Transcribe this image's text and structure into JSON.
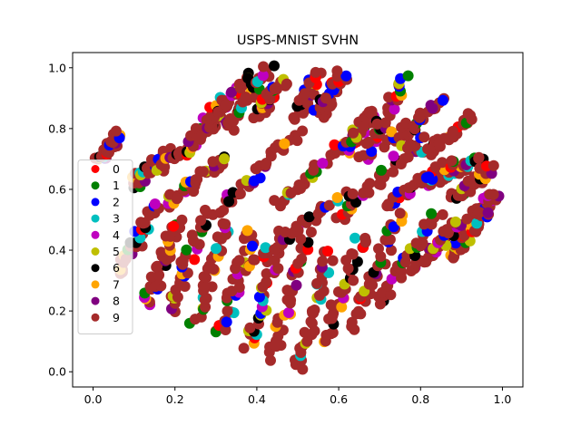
{
  "chart_data": {
    "type": "scatter",
    "title": "USPS-MNIST SVHN",
    "xlabel": "",
    "ylabel": "",
    "xlim": [
      -0.05,
      1.05
    ],
    "ylim": [
      -0.05,
      1.05
    ],
    "x_ticks": [
      "0.0",
      "0.2",
      "0.4",
      "0.6",
      "0.8",
      "1.0"
    ],
    "y_ticks": [
      "0.0",
      "0.2",
      "0.4",
      "0.6",
      "0.8",
      "1.0"
    ],
    "grid": false,
    "legend_position": "center-left",
    "series": [
      {
        "name": "0",
        "color": "#ff0000"
      },
      {
        "name": "1",
        "color": "#008000"
      },
      {
        "name": "2",
        "color": "#0000ff"
      },
      {
        "name": "3",
        "color": "#00bfbf"
      },
      {
        "name": "4",
        "color": "#bf00bf"
      },
      {
        "name": "5",
        "color": "#bfbf00"
      },
      {
        "name": "6",
        "color": "#000000"
      },
      {
        "name": "7",
        "color": "#ffa500"
      },
      {
        "name": "8",
        "color": "#800080"
      },
      {
        "name": "9",
        "color": "#a52a2a"
      }
    ],
    "clusters": [
      {
        "x": [
          0.02,
          0.06
        ],
        "y": [
          0.69,
          0.78
        ]
      },
      {
        "x": [
          0.1,
          0.18
        ],
        "y": [
          0.62,
          0.72
        ]
      },
      {
        "x": [
          0.16,
          0.3
        ],
        "y": [
          0.66,
          0.82
        ]
      },
      {
        "x": [
          0.22,
          0.34
        ],
        "y": [
          0.72,
          0.93
        ]
      },
      {
        "x": [
          0.27,
          0.38
        ],
        "y": [
          0.78,
          0.98
        ]
      },
      {
        "x": [
          0.33,
          0.43
        ],
        "y": [
          0.8,
          1.0
        ]
      },
      {
        "x": [
          0.4,
          0.46
        ],
        "y": [
          0.84,
          0.96
        ]
      },
      {
        "x": [
          0.5,
          0.55
        ],
        "y": [
          0.84,
          0.98
        ]
      },
      {
        "x": [
          0.55,
          0.61
        ],
        "y": [
          0.84,
          0.98
        ]
      },
      {
        "x": [
          0.62,
          0.68
        ],
        "y": [
          0.72,
          0.86
        ]
      },
      {
        "x": [
          0.66,
          0.76
        ],
        "y": [
          0.7,
          0.96
        ]
      },
      {
        "x": [
          0.72,
          0.85
        ],
        "y": [
          0.75,
          0.89
        ]
      },
      {
        "x": [
          0.8,
          0.93
        ],
        "y": [
          0.71,
          0.84
        ]
      },
      {
        "x": [
          0.83,
          0.95
        ],
        "y": [
          0.62,
          0.7
        ]
      },
      {
        "x": [
          0.88,
          0.97
        ],
        "y": [
          0.57,
          0.67
        ]
      },
      {
        "x": [
          0.91,
          0.98
        ],
        "y": [
          0.47,
          0.58
        ]
      },
      {
        "x": [
          0.87,
          0.96
        ],
        "y": [
          0.38,
          0.52
        ]
      },
      {
        "x": [
          0.79,
          0.9
        ],
        "y": [
          0.34,
          0.5
        ]
      },
      {
        "x": [
          0.7,
          0.84
        ],
        "y": [
          0.22,
          0.52
        ]
      },
      {
        "x": [
          0.63,
          0.75
        ],
        "y": [
          0.15,
          0.52
        ]
      },
      {
        "x": [
          0.56,
          0.66
        ],
        "y": [
          0.1,
          0.45
        ]
      },
      {
        "x": [
          0.5,
          0.58
        ],
        "y": [
          0.0,
          0.4
        ]
      },
      {
        "x": [
          0.44,
          0.52
        ],
        "y": [
          0.05,
          0.45
        ]
      },
      {
        "x": [
          0.38,
          0.46
        ],
        "y": [
          0.08,
          0.45
        ]
      },
      {
        "x": [
          0.31,
          0.39
        ],
        "y": [
          0.12,
          0.46
        ]
      },
      {
        "x": [
          0.25,
          0.33
        ],
        "y": [
          0.17,
          0.5
        ]
      },
      {
        "x": [
          0.19,
          0.27
        ],
        "y": [
          0.2,
          0.52
        ]
      },
      {
        "x": [
          0.13,
          0.21
        ],
        "y": [
          0.22,
          0.5
        ]
      },
      {
        "x": [
          0.07,
          0.15
        ],
        "y": [
          0.32,
          0.55
        ]
      },
      {
        "x": [
          0.18,
          0.32
        ],
        "y": [
          0.55,
          0.7
        ]
      },
      {
        "x": [
          0.3,
          0.5
        ],
        "y": [
          0.52,
          0.78
        ]
      },
      {
        "x": [
          0.45,
          0.65
        ],
        "y": [
          0.55,
          0.8
        ]
      },
      {
        "x": [
          0.6,
          0.8
        ],
        "y": [
          0.5,
          0.78
        ]
      },
      {
        "x": [
          0.38,
          0.62
        ],
        "y": [
          0.35,
          0.6
        ]
      },
      {
        "x": [
          0.72,
          0.88
        ],
        "y": [
          0.55,
          0.7
        ]
      }
    ]
  }
}
